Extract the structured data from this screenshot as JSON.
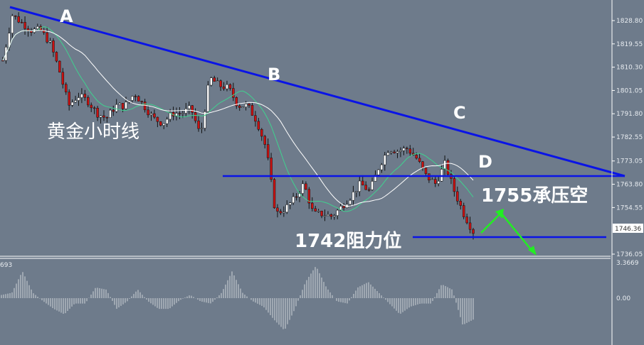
{
  "chart_data": {
    "type": "candlestick",
    "title": "黄金小时线",
    "y_ticks": [
      "1828.80",
      "1819.55",
      "1810.30",
      "1801.05",
      "1791.80",
      "1782.55",
      "1773.05",
      "1763.80",
      "1754.55",
      "1736.05"
    ],
    "ylim": [
      1736.05,
      1828.8
    ],
    "current_price": "1746.36",
    "approx_close_path": [
      1813,
      1831,
      1828,
      1825,
      1825,
      1820,
      1809,
      1795,
      1799,
      1797,
      1792,
      1790,
      1795,
      1795,
      1800,
      1795,
      1790,
      1788,
      1792,
      1792,
      1794,
      1783,
      1806,
      1803,
      1802,
      1795,
      1795,
      1789,
      1778,
      1752,
      1754,
      1758,
      1764,
      1752,
      1752,
      1751,
      1755,
      1759,
      1764,
      1761,
      1771,
      1778,
      1777,
      1778,
      1774,
      1767,
      1764,
      1772,
      1761,
      1752,
      1745
    ],
    "moving_averages_colors": [
      "#3fd28f",
      "#ffffff"
    ],
    "annotations": {
      "A": "A",
      "B": "B",
      "C": "C",
      "D": "D",
      "support": "1742阻力位",
      "resistance": "1755承压空"
    },
    "line_color": "#0a14e6",
    "arrow_color": "#22ee22",
    "oscillator": {
      "label": "693",
      "y_ticks": [
        "3.3669",
        "0.00"
      ],
      "approx_values": [
        0.3,
        0.5,
        2.5,
        0.5,
        -0.3,
        -1,
        -1.5,
        -0.5,
        -0.5,
        1,
        0.8,
        -1,
        -0.3,
        0.8,
        -0.3,
        -1,
        -1,
        -0.2,
        0.3,
        -0.3,
        -0.5,
        0.5,
        2.5,
        0.5,
        -0.3,
        -0.8,
        -2,
        -3,
        -1,
        1.5,
        3,
        1,
        -0.3,
        -0.5,
        1,
        1.5,
        0.5,
        -0.5,
        -1.5,
        -0.8,
        -0.5,
        -0.5,
        1.3,
        0.8,
        -2.5,
        -2
      ]
    }
  }
}
